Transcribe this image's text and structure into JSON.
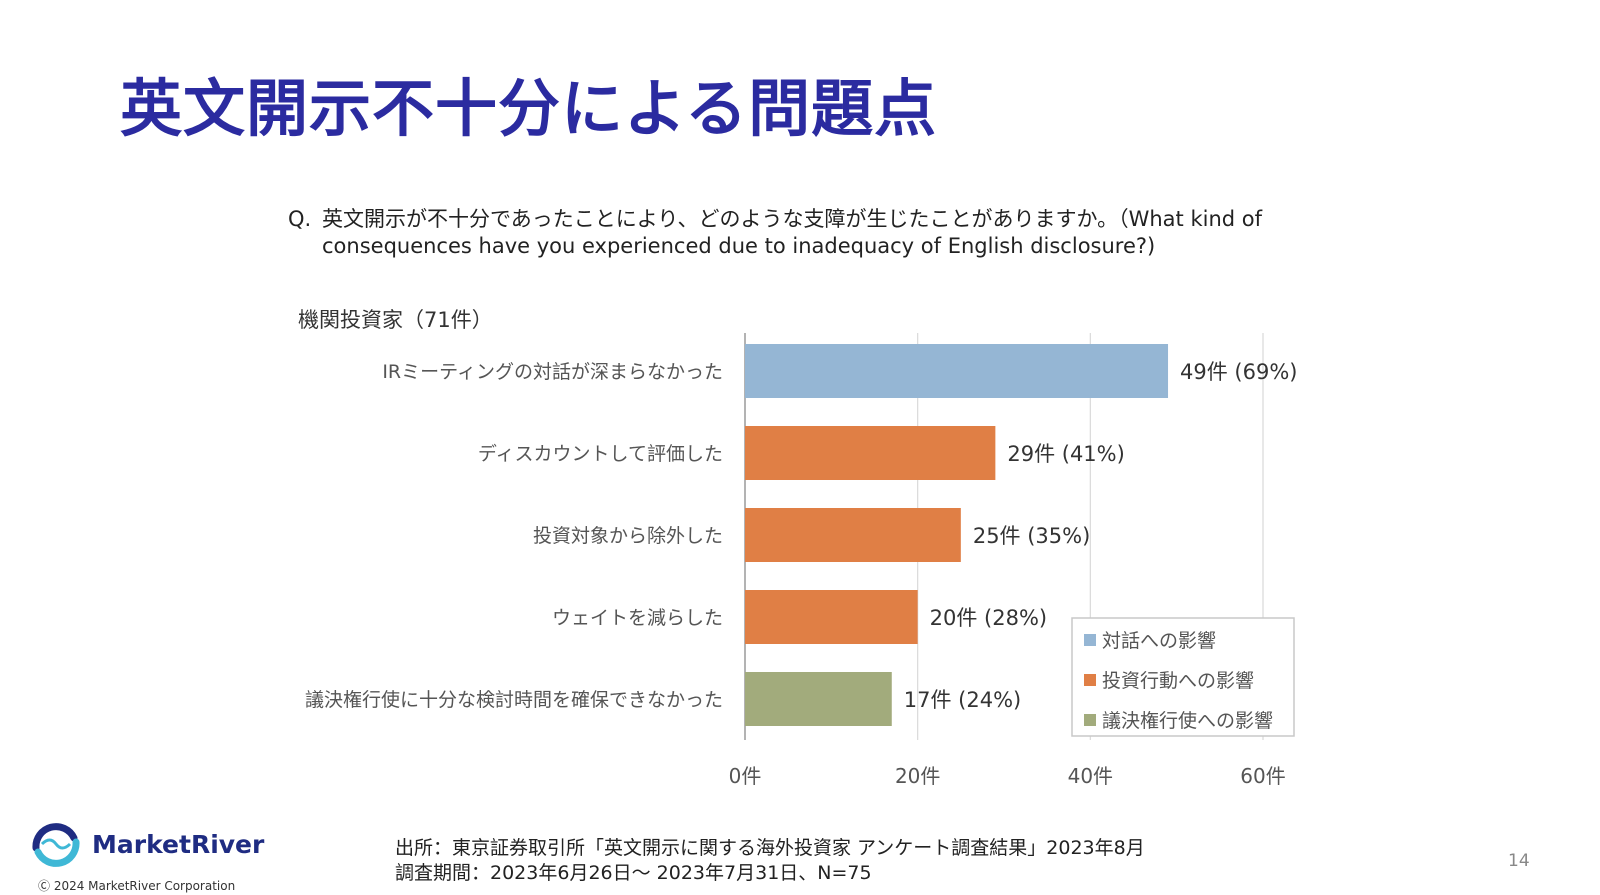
{
  "slide": {
    "title": "英文開示不十分による問題点",
    "question_line1": "英文開示が不十分であったことにより、どのような支障が生じたことがありますか。（What kind of",
    "question_prefix": "Q.",
    "question_line2": "consequences have you experienced due to inadequacy of English disclosure?)",
    "group_label": "機関投資家（71件）",
    "page_number": "14"
  },
  "footer": {
    "brand": "MarketRiver",
    "copyright": "Ⓒ 2024 MarketRiver Corporation",
    "source_line1": "出所：東京証券取引所「英文開示に関する海外投資家 アンケート調査結果」2023年8月",
    "source_line2": "調査期間：2023年6月26日〜 2023年7月31日、N=75"
  },
  "colors": {
    "title": "#2b2ba0",
    "dialogue": "#95b6d4",
    "investment": "#e07f45",
    "voting": "#a2ab7c",
    "brand": "#1f2c82",
    "logo_accent": "#3fb8d6"
  },
  "chart_data": {
    "type": "bar",
    "orientation": "horizontal",
    "categories": [
      "IRミーティングの対話が深まらなかった",
      "ディスカウントして評価した",
      "投資対象から除外した",
      "ウェイトを減らした",
      "議決権行使に十分な検討時間を確保できなかった"
    ],
    "values": [
      49,
      29,
      25,
      20,
      17
    ],
    "data_labels": [
      "49件 (69%)",
      "29件 (41%)",
      "25件 (35%)",
      "20件 (28%)",
      "17件 (24%)"
    ],
    "bar_groups": [
      "対話への影響",
      "投資行動への影響",
      "投資行動への影響",
      "投資行動への影響",
      "議決権行使への影響"
    ],
    "bar_colors": [
      "#95b6d4",
      "#e07f45",
      "#e07f45",
      "#e07f45",
      "#a2ab7c"
    ],
    "xlim": [
      0,
      60
    ],
    "xticks": [
      0,
      20,
      40,
      60
    ],
    "xtick_labels": [
      "0件",
      "20件",
      "40件",
      "60件"
    ],
    "grid": true,
    "legend": {
      "position": "bottom-right",
      "entries": [
        {
          "label": "対話への影響",
          "color": "#95b6d4"
        },
        {
          "label": "投資行動への影響",
          "color": "#e07f45"
        },
        {
          "label": "議決権行使への影響",
          "color": "#a2ab7c"
        }
      ]
    }
  }
}
